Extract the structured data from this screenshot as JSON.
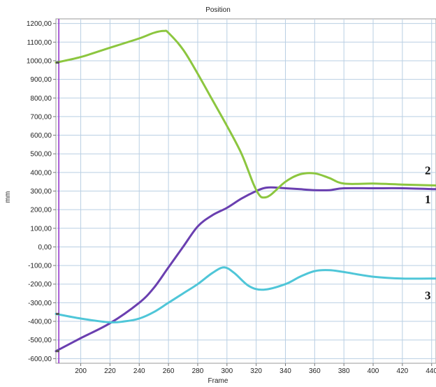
{
  "chart_data": {
    "type": "line",
    "title": "Position",
    "xlabel": "Frame",
    "ylabel": "mm",
    "xlim": [
      183,
      443
    ],
    "ylim": [
      -625,
      1225
    ],
    "grid": true,
    "x_ticks": [
      200,
      220,
      240,
      260,
      280,
      300,
      320,
      340,
      360,
      380,
      400,
      420,
      440
    ],
    "y_ticks": [
      1200,
      1100,
      1000,
      900,
      800,
      700,
      600,
      500,
      400,
      300,
      200,
      100,
      0,
      -100,
      -200,
      -300,
      -400,
      -500,
      -600
    ],
    "y_tick_labels": [
      "1200,00",
      "1100,00",
      "1000,00",
      "900,00",
      "800,00",
      "700,00",
      "600,00",
      "500,00",
      "400,00",
      "300,00",
      "200,00",
      "100,00",
      "0,00",
      "-100,00",
      "-200,00",
      "-300,00",
      "-400,00",
      "-500,00",
      "-600,00"
    ],
    "marker_line_x": 185,
    "series": [
      {
        "label": "1",
        "color": "#6a3fb0",
        "x": [
          183,
          200,
          220,
          240,
          250,
          260,
          270,
          280,
          290,
          300,
          310,
          320,
          325,
          330,
          340,
          350,
          360,
          370,
          380,
          400,
          420,
          443
        ],
        "y": [
          -560,
          -490,
          -410,
          -300,
          -220,
          -110,
          0,
          110,
          170,
          210,
          260,
          300,
          315,
          320,
          315,
          310,
          305,
          305,
          315,
          315,
          315,
          310
        ]
      },
      {
        "label": "2",
        "color": "#8cc63f",
        "x": [
          183,
          200,
          220,
          240,
          250,
          257,
          260,
          270,
          280,
          290,
          300,
          310,
          318,
          322,
          325,
          330,
          340,
          350,
          360,
          370,
          380,
          400,
          420,
          443
        ],
        "y": [
          990,
          1020,
          1070,
          1120,
          1150,
          1160,
          1150,
          1060,
          930,
          790,
          650,
          500,
          340,
          280,
          265,
          280,
          350,
          390,
          395,
          370,
          340,
          340,
          335,
          330
        ]
      },
      {
        "label": "3",
        "color": "#4fc6d8",
        "x": [
          183,
          200,
          220,
          230,
          240,
          250,
          260,
          270,
          280,
          290,
          298,
          305,
          315,
          325,
          340,
          350,
          360,
          370,
          380,
          400,
          420,
          443
        ],
        "y": [
          -360,
          -385,
          -405,
          -400,
          -385,
          -350,
          -300,
          -250,
          -200,
          -140,
          -110,
          -140,
          -210,
          -230,
          -200,
          -160,
          -130,
          -125,
          -135,
          -160,
          -170,
          -170
        ]
      }
    ]
  }
}
